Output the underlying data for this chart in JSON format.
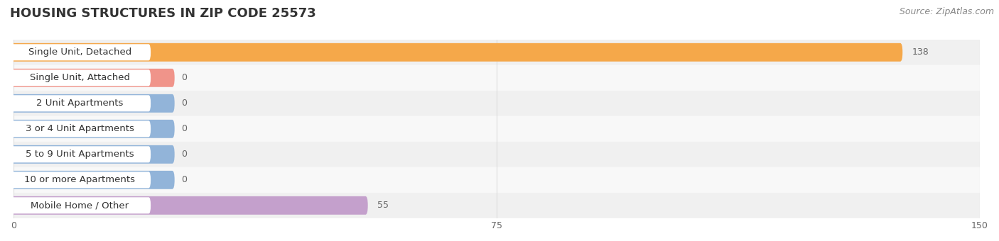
{
  "title": "HOUSING STRUCTURES IN ZIP CODE 25573",
  "source": "Source: ZipAtlas.com",
  "categories": [
    "Single Unit, Detached",
    "Single Unit, Attached",
    "2 Unit Apartments",
    "3 or 4 Unit Apartments",
    "5 to 9 Unit Apartments",
    "10 or more Apartments",
    "Mobile Home / Other"
  ],
  "values": [
    138,
    0,
    0,
    0,
    0,
    0,
    55
  ],
  "bar_colors": [
    "#f5a84a",
    "#f0948a",
    "#92b4d9",
    "#92b4d9",
    "#92b4d9",
    "#92b4d9",
    "#c4a0cc"
  ],
  "row_bg_colors": [
    "#f0f0f0",
    "#f8f8f8"
  ],
  "label_box_color": "#ffffff",
  "xlim": [
    0,
    150
  ],
  "xticks": [
    0,
    75,
    150
  ],
  "title_fontsize": 13,
  "source_fontsize": 9,
  "label_fontsize": 9.5,
  "value_fontsize": 9,
  "background_color": "#ffffff",
  "grid_color": "#dddddd",
  "text_color": "#333333",
  "source_color": "#888888",
  "tick_color": "#666666"
}
